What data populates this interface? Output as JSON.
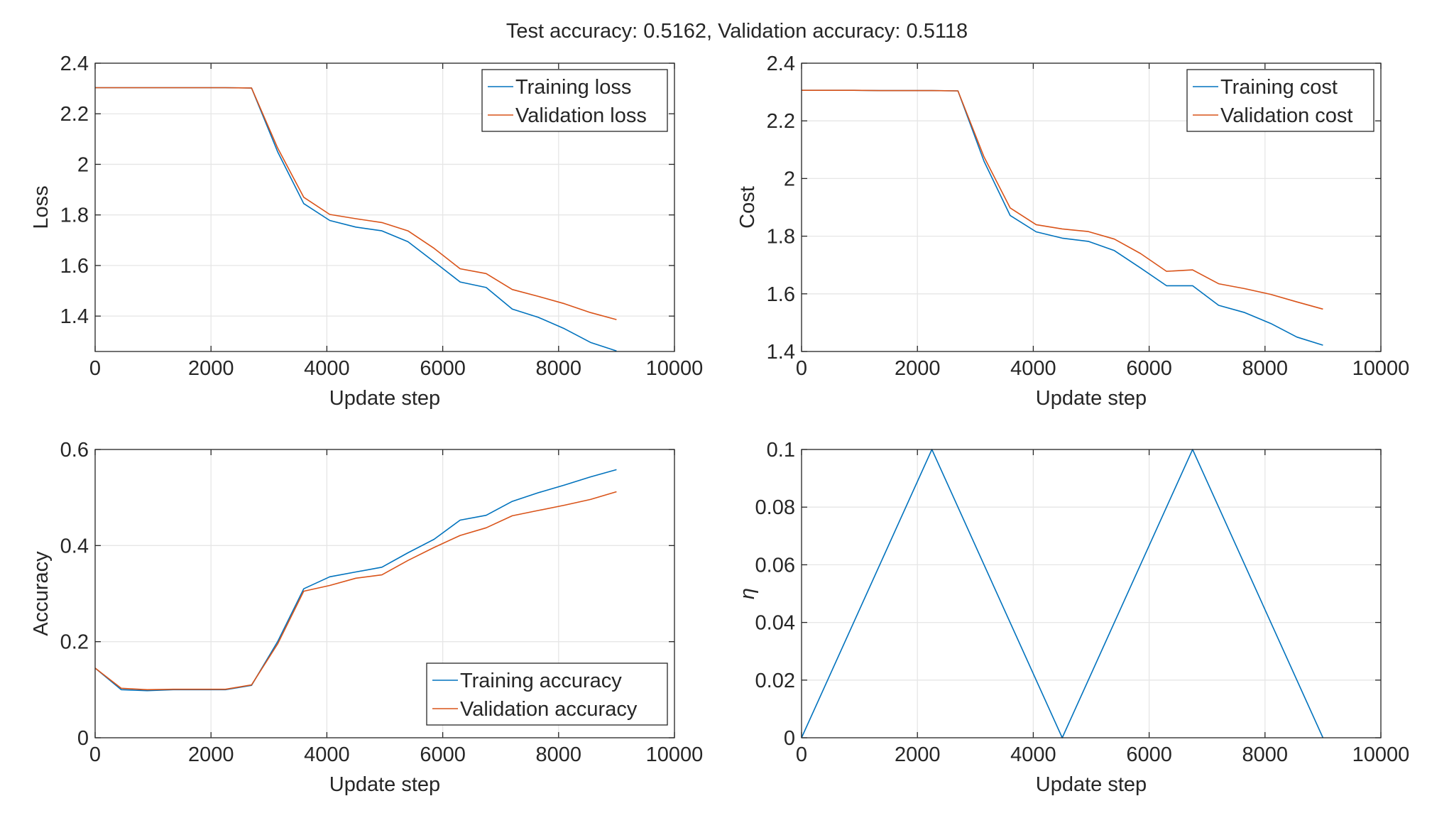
{
  "figure": {
    "suptitle": "Test accuracy: 0.5162, Validation accuracy: 0.5118"
  },
  "chart_data": [
    {
      "type": "line",
      "title": "",
      "xlabel": "Update step",
      "ylabel": "Loss",
      "xlim": [
        0,
        10000
      ],
      "ylim": [
        1.26,
        2.4
      ],
      "xticks": [
        "0",
        "2000",
        "4000",
        "6000",
        "8000",
        "10000"
      ],
      "yticks": [
        "1.4",
        "1.6",
        "1.8",
        "2",
        "2.2",
        "2.4"
      ],
      "ytick_values": [
        1.4,
        1.6,
        1.8,
        2.0,
        2.2,
        2.4
      ],
      "grid": true,
      "legend": "top-right",
      "x": [
        0,
        450,
        900,
        1350,
        1800,
        2250,
        2700,
        3150,
        3600,
        4050,
        4500,
        4950,
        5400,
        5850,
        6300,
        6750,
        7200,
        7650,
        8100,
        8550,
        9000
      ],
      "series": [
        {
          "name": "Training loss",
          "color": "#0072bd",
          "values": [
            2.303,
            2.303,
            2.303,
            2.303,
            2.303,
            2.303,
            2.302,
            2.05,
            1.845,
            1.778,
            1.752,
            1.737,
            1.694,
            1.615,
            1.535,
            1.513,
            1.428,
            1.395,
            1.35,
            1.296,
            1.262
          ]
        },
        {
          "name": "Validation loss",
          "color": "#d95319",
          "values": [
            2.303,
            2.303,
            2.303,
            2.303,
            2.303,
            2.303,
            2.302,
            2.065,
            1.87,
            1.802,
            1.785,
            1.77,
            1.737,
            1.668,
            1.587,
            1.568,
            1.505,
            1.478,
            1.449,
            1.414,
            1.386
          ]
        }
      ]
    },
    {
      "type": "line",
      "title": "",
      "xlabel": "Update step",
      "ylabel": "Cost",
      "xlim": [
        0,
        10000
      ],
      "ylim": [
        1.4,
        2.4
      ],
      "xticks": [
        "0",
        "2000",
        "4000",
        "6000",
        "8000",
        "10000"
      ],
      "yticks": [
        "1.4",
        "1.6",
        "1.8",
        "2",
        "2.2",
        "2.4"
      ],
      "ytick_values": [
        1.4,
        1.6,
        1.8,
        2.0,
        2.2,
        2.4
      ],
      "grid": true,
      "legend": "top-right",
      "x": [
        0,
        450,
        900,
        1350,
        1800,
        2250,
        2700,
        3150,
        3600,
        4050,
        4500,
        4950,
        5400,
        5850,
        6300,
        6750,
        7200,
        7650,
        8100,
        8550,
        9000
      ],
      "series": [
        {
          "name": "Training cost",
          "color": "#0072bd",
          "values": [
            2.306,
            2.306,
            2.306,
            2.305,
            2.305,
            2.305,
            2.304,
            2.06,
            1.872,
            1.815,
            1.793,
            1.782,
            1.75,
            1.69,
            1.628,
            1.628,
            1.56,
            1.535,
            1.497,
            1.45,
            1.422
          ]
        },
        {
          "name": "Validation cost",
          "color": "#d95319",
          "values": [
            2.306,
            2.306,
            2.306,
            2.305,
            2.305,
            2.305,
            2.304,
            2.075,
            1.898,
            1.84,
            1.825,
            1.816,
            1.79,
            1.74,
            1.678,
            1.683,
            1.635,
            1.618,
            1.598,
            1.572,
            1.547
          ]
        }
      ]
    },
    {
      "type": "line",
      "title": "",
      "xlabel": "Update step",
      "ylabel": "Accuracy",
      "xlim": [
        0,
        10000
      ],
      "ylim": [
        0,
        0.6
      ],
      "xticks": [
        "0",
        "2000",
        "4000",
        "6000",
        "8000",
        "10000"
      ],
      "yticks": [
        "0",
        "0.2",
        "0.4",
        "0.6"
      ],
      "ytick_values": [
        0,
        0.2,
        0.4,
        0.6
      ],
      "grid": true,
      "legend": "bottom-right",
      "x": [
        0,
        450,
        900,
        1350,
        1800,
        2250,
        2700,
        3150,
        3600,
        4050,
        4500,
        4950,
        5400,
        5850,
        6300,
        6750,
        7200,
        7650,
        8100,
        8550,
        9000
      ],
      "series": [
        {
          "name": "Training accuracy",
          "color": "#0072bd",
          "values": [
            0.145,
            0.1,
            0.098,
            0.1,
            0.1,
            0.1,
            0.109,
            0.2,
            0.31,
            0.335,
            0.345,
            0.355,
            0.385,
            0.413,
            0.453,
            0.463,
            0.492,
            0.51,
            0.526,
            0.543,
            0.558
          ]
        },
        {
          "name": "Validation accuracy",
          "color": "#d95319",
          "values": [
            0.145,
            0.103,
            0.1,
            0.101,
            0.101,
            0.101,
            0.11,
            0.195,
            0.305,
            0.317,
            0.332,
            0.339,
            0.369,
            0.396,
            0.421,
            0.437,
            0.462,
            0.473,
            0.484,
            0.496,
            0.512
          ]
        }
      ]
    },
    {
      "type": "line",
      "title": "",
      "xlabel": "Update step",
      "ylabel": "η",
      "xlim": [
        0,
        10000
      ],
      "ylim": [
        0,
        0.1
      ],
      "xticks": [
        "0",
        "2000",
        "4000",
        "6000",
        "8000",
        "10000"
      ],
      "yticks": [
        "0",
        "0.02",
        "0.04",
        "0.06",
        "0.08",
        "0.1"
      ],
      "ytick_values": [
        0,
        0.02,
        0.04,
        0.06,
        0.08,
        0.1
      ],
      "grid": true,
      "legend": "none",
      "x": [
        0,
        2250,
        4500,
        6750,
        9000
      ],
      "series": [
        {
          "color": "#0072bd",
          "values": [
            0,
            0.1,
            0,
            0.1,
            0
          ]
        }
      ]
    }
  ]
}
